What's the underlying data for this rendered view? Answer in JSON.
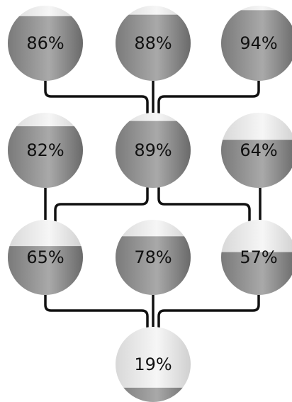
{
  "nodes": [
    {
      "id": "n1",
      "label": "86%",
      "fill": 0.86
    },
    {
      "id": "n2",
      "label": "88%",
      "fill": 0.88
    },
    {
      "id": "n3",
      "label": "94%",
      "fill": 0.94
    },
    {
      "id": "n4",
      "label": "82%",
      "fill": 0.82
    },
    {
      "id": "n5",
      "label": "89%",
      "fill": 0.89
    },
    {
      "id": "n6",
      "label": "64%",
      "fill": 0.64
    },
    {
      "id": "n7",
      "label": "65%",
      "fill": 0.65
    },
    {
      "id": "n8",
      "label": "78%",
      "fill": 0.78
    },
    {
      "id": "n9",
      "label": "57%",
      "fill": 0.57
    },
    {
      "id": "n10",
      "label": "19%",
      "fill": 0.19
    }
  ],
  "edges": [
    [
      "n1",
      "n5"
    ],
    [
      "n2",
      "n5"
    ],
    [
      "n3",
      "n5"
    ],
    [
      "n4",
      "n7"
    ],
    [
      "n5",
      "n7"
    ],
    [
      "n5",
      "n9"
    ],
    [
      "n6",
      "n9"
    ],
    [
      "n7",
      "n10"
    ],
    [
      "n8",
      "n10"
    ],
    [
      "n9",
      "n10"
    ]
  ],
  "colors": {
    "connector": "#111111",
    "label": "#111111",
    "fill_light": "#a8a8a8",
    "fill_dark": "#6e6e6e",
    "empty_light": "#f4f4f4",
    "empty_dark": "#c4c4c4"
  }
}
